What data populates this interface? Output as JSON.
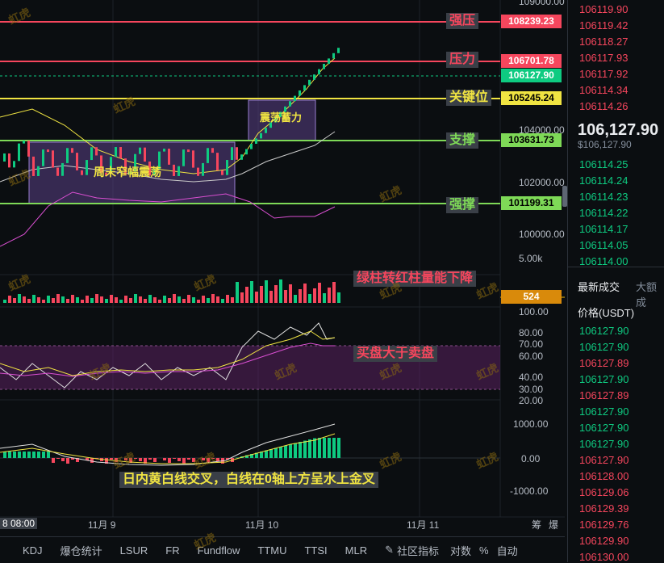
{
  "price_axis": {
    "labels": [
      "109000.00",
      "104000.00",
      "102000.00",
      "100000.00"
    ],
    "volume_label": "5.00k"
  },
  "levels": [
    {
      "cn": "强压",
      "price": "108239.23",
      "color": "#f6465d"
    },
    {
      "cn": "压力",
      "price": "106701.78",
      "color": "#f6465d"
    },
    {
      "cn": "关键位",
      "price": "105245.24",
      "color": "#f0e442"
    },
    {
      "cn": "支撑",
      "price": "103631.73",
      "color": "#7ed957"
    },
    {
      "cn": "强撑",
      "price": "101199.31",
      "color": "#7ed957"
    }
  ],
  "current_price_tag": "106127.90",
  "boxes": {
    "weekend": "周末窄幅震荡",
    "accumulate": "震荡蓄力"
  },
  "volume_panel": {
    "note": "绿柱转红柱量能下降",
    "value_tag": "524"
  },
  "rsi_panel": {
    "note": "买盘大于卖盘",
    "ticks": [
      "100.00",
      "80.00",
      "70.00",
      "60.00",
      "40.00",
      "30.00",
      "20.00"
    ]
  },
  "macd_panel": {
    "note": "日内黄白线交叉，白线在0轴上方呈水上金叉",
    "ticks": [
      "1000.00",
      "0.00",
      "-1000.00"
    ]
  },
  "x_axis": {
    "labels": [
      "8 08:00",
      "11月 9",
      "11月 10",
      "11月 11"
    ],
    "right_labels": [
      "筹",
      "爆"
    ]
  },
  "bottom_tabs": [
    "KDJ",
    "爆仓统计",
    "LSUR",
    "FR",
    "Fundflow",
    "TTMU",
    "TTSI",
    "MLR",
    "社区指标",
    "对数",
    "%",
    "自动"
  ],
  "orderbook": {
    "asks": [
      "106119.90",
      "106119.42",
      "106118.27",
      "106117.93",
      "106117.92",
      "106114.34",
      "106114.26"
    ],
    "last_price": "106,127.90",
    "last_price_sub": "$106,127.90",
    "bids": [
      "106114.25",
      "106114.24",
      "106114.23",
      "106114.22",
      "106114.17",
      "106114.05",
      "106114.00"
    ],
    "tabs": [
      "最新成交",
      "大额成"
    ],
    "price_header": "价格(USDT)",
    "trades": [
      {
        "p": "106127.90",
        "c": "buy"
      },
      {
        "p": "106127.90",
        "c": "buy"
      },
      {
        "p": "106127.89",
        "c": "sell"
      },
      {
        "p": "106127.90",
        "c": "buy"
      },
      {
        "p": "106127.89",
        "c": "sell"
      },
      {
        "p": "106127.90",
        "c": "buy"
      },
      {
        "p": "106127.90",
        "c": "buy"
      },
      {
        "p": "106127.90",
        "c": "buy"
      },
      {
        "p": "106127.90",
        "c": "sell"
      },
      {
        "p": "106128.00",
        "c": "sell"
      },
      {
        "p": "106129.06",
        "c": "sell"
      },
      {
        "p": "106129.39",
        "c": "sell"
      },
      {
        "p": "106129.76",
        "c": "sell"
      },
      {
        "p": "106129.90",
        "c": "sell"
      },
      {
        "p": "106130.00",
        "c": "sell"
      }
    ]
  },
  "watermark": "虹虎"
}
